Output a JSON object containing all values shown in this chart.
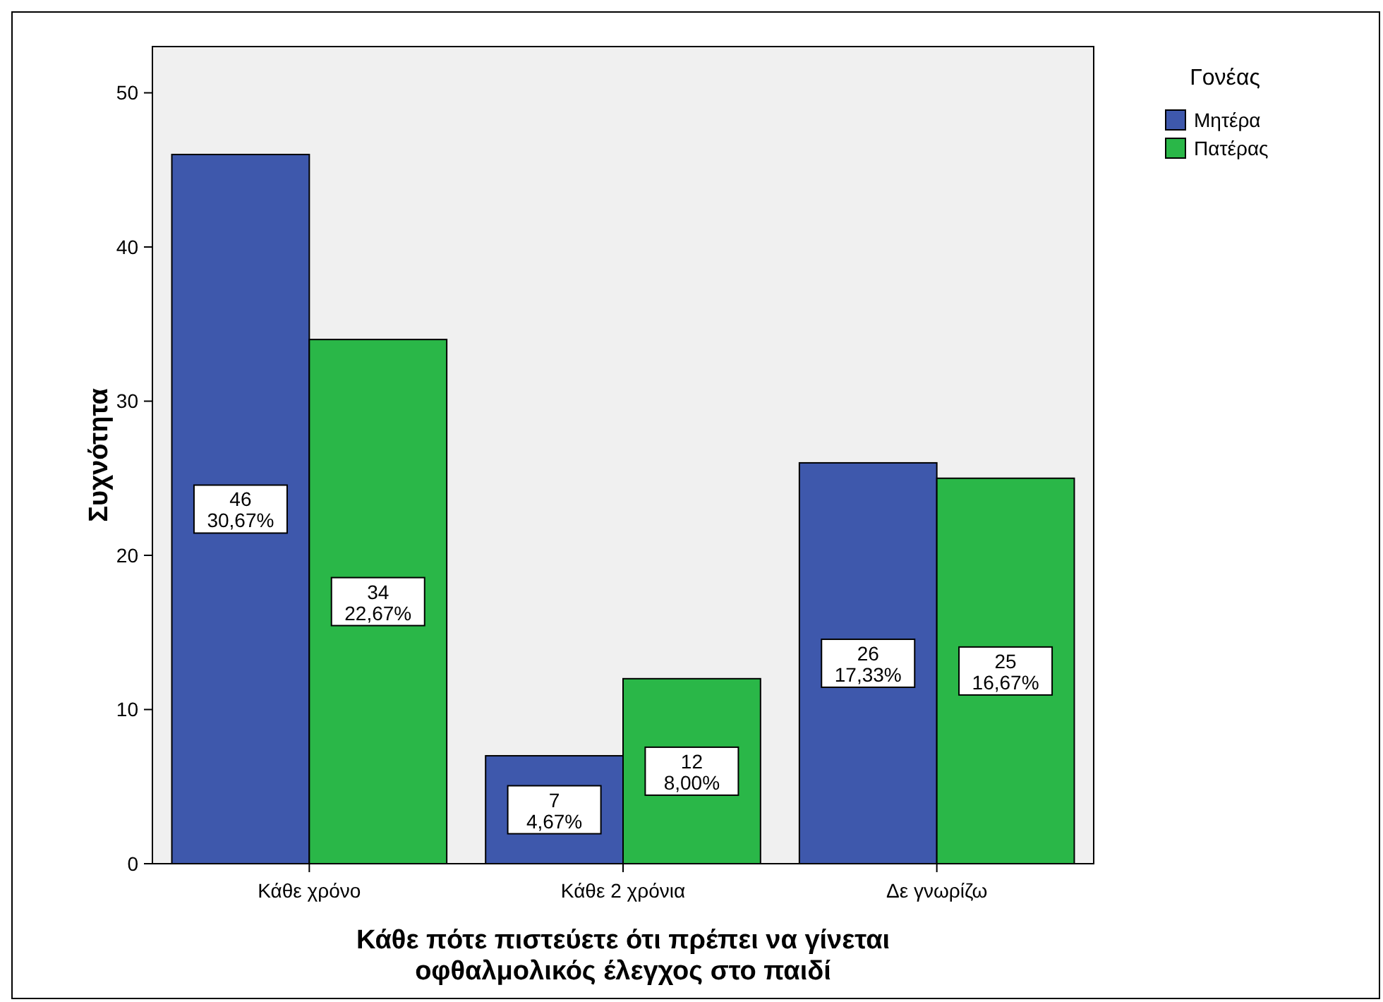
{
  "chart_data": {
    "type": "bar",
    "xlabel": "Κάθε πότε πιστεύετε ότι πρέπει να γίνεται οφθαλμολικός έλεγχος στο παιδί",
    "ylabel": "Συχνότητα",
    "legend_title": "Γονέας",
    "legend": "right",
    "categories": [
      "Κάθε χρόνο",
      "Κάθε 2 χρόνια",
      "Δε γνωρίζω"
    ],
    "ylim": [
      0,
      53
    ],
    "yticks": [
      0,
      10,
      20,
      30,
      40,
      50
    ],
    "series": [
      {
        "name": "Μητέρα",
        "color": "#3e58ac",
        "values": [
          46,
          7,
          26
        ],
        "value_labels": [
          "46\n30,67%",
          "7\n4,67%",
          "26\n17,33%"
        ]
      },
      {
        "name": "Πατέρας",
        "color": "#2ab748",
        "values": [
          34,
          12,
          25
        ],
        "value_labels": [
          "34\n22,67%",
          "12\n8,00%",
          "25\n16,67%"
        ]
      }
    ]
  }
}
